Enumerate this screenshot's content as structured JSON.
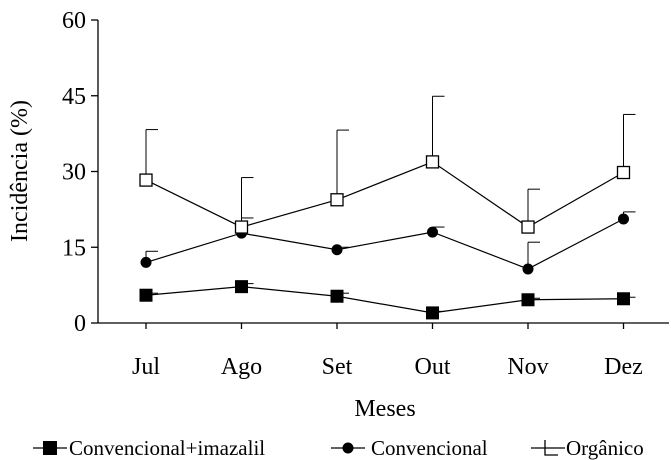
{
  "chart_data": {
    "type": "line",
    "xlabel": "Meses",
    "ylabel": "Incidência (%)",
    "categories": [
      "Jul",
      "Ago",
      "Set",
      "Out",
      "Nov",
      "Dez"
    ],
    "ylim": [
      0,
      60
    ],
    "yticks": [
      0,
      15,
      30,
      45,
      60
    ],
    "grid": false,
    "legend_position": "bottom",
    "series": [
      {
        "name": "Convencional+imazalil",
        "marker": "filled-square",
        "color": "#000000",
        "values": [
          5.5,
          7.2,
          5.3,
          2.0,
          4.6,
          4.8
        ],
        "error": [
          0.4,
          0.6,
          0.6,
          0.3,
          0.3,
          0.3
        ]
      },
      {
        "name": "Convencional",
        "marker": "filled-circle",
        "color": "#000000",
        "values": [
          12.0,
          17.8,
          14.5,
          18.0,
          10.7,
          20.6
        ],
        "error": [
          2.2,
          3.0,
          0.5,
          1.0,
          5.3,
          1.4
        ]
      },
      {
        "name": "Orgânico",
        "marker": "open-square",
        "color": "#000000",
        "values": [
          28.3,
          19.0,
          24.4,
          31.9,
          19.0,
          29.8
        ],
        "error": [
          10.0,
          9.8,
          13.8,
          13.0,
          7.5,
          11.5
        ]
      }
    ]
  }
}
